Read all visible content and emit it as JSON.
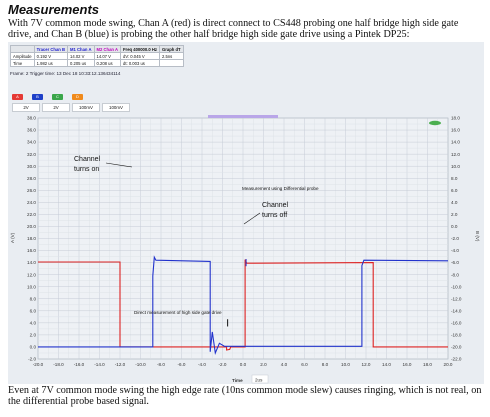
{
  "heading": "Measurements",
  "intro": "With 7V common mode swing, Chan A (red) is direct connect to CS448 probing one half bridge high side gate drive, and Chan B (blue) is probing the other half bridge high side gate drive using a Pintek DP25:",
  "conclusion": "Even at 7V common mode swing the high edge rate (10ns common mode slew) causes ringing, which is not real, on the differential probe based signal.",
  "table": {
    "headers": [
      "",
      "Tracer Chan B",
      "M1 Chan A",
      "M2 Chan A",
      "Freq 400000.0 Hz",
      "Graph dT"
    ],
    "rows": [
      [
        "Amplitude",
        "0.192 V",
        "14.02 V",
        "14.07 V",
        "dV: 0.045 V",
        "2.5ns"
      ],
      [
        "Time",
        "1.982 us",
        "0.205 us",
        "0.208 us",
        "dt: 0.003 us",
        ""
      ]
    ]
  },
  "frame_text": "Frame: 2   Trigger time: 13 Dec 18 10:33:12.136434114",
  "toolbar": {
    "buttons": [
      {
        "label": "A",
        "color": "#e53935"
      },
      {
        "label": "B",
        "color": "#1e40c8"
      },
      {
        "label": "C",
        "color": "#3aa64a"
      },
      {
        "label": "D",
        "color": "#f08a1c"
      }
    ],
    "selectors": [
      "2V",
      "2V",
      "100mV",
      "100mV"
    ]
  },
  "legend_pill": "#4caf50",
  "annotations": {
    "channel_on_1": "Channel",
    "channel_on_2": "turns on",
    "diff_probe": "Measurement using Differential probe",
    "channel_off_1": "Channel",
    "channel_off_2": "turns off",
    "direct": "Direct measurement of high side gate drive"
  },
  "x_axis_label": "Time",
  "x_units": "2us",
  "left_axis_label": "A (V)",
  "right_axis_label": "B (V)",
  "colors": {
    "chan_a": "#dd2222",
    "chan_b": "#2233cc",
    "grid_major": "#c5ccd6",
    "grid_minor": "#dde2e8"
  },
  "chart_data": {
    "type": "line",
    "x_ticks": [
      "-20.0",
      "-18.0",
      "-16.0",
      "-14.0",
      "-12.0",
      "-10.0",
      "-8.0",
      "-6.0",
      "-4.0",
      "-2.0",
      "0.0",
      "2.0",
      "4.0",
      "6.0",
      "8.0",
      "10.0",
      "12.0",
      "14.0",
      "16.0",
      "18.0",
      "20.0"
    ],
    "left_ticks": [
      "38.0",
      "36.0",
      "34.0",
      "32.0",
      "30.0",
      "28.0",
      "26.0",
      "24.0",
      "22.0",
      "20.0",
      "18.0",
      "16.0",
      "14.0",
      "12.0",
      "10.0",
      "8.0",
      "6.0",
      "4.0",
      "2.0",
      "0.0",
      "-2.0"
    ],
    "right_ticks": [
      "18.0",
      "16.0",
      "14.0",
      "12.0",
      "10.0",
      "8.0",
      "6.0",
      "4.0",
      "2.0",
      "0.0",
      "-2.0",
      "-4.0",
      "-6.0",
      "-8.0",
      "-10.0",
      "-12.0",
      "-14.0",
      "-16.0",
      "-18.0",
      "-20.0",
      "-22.0"
    ],
    "xlim": [
      -20,
      20
    ],
    "ylim_left": [
      -2,
      38
    ],
    "ylim_right": [
      -22,
      18
    ],
    "series": [
      {
        "key": "chan_a",
        "points": [
          [
            -20,
            14.1
          ],
          [
            -12,
            14.1
          ],
          [
            -12,
            0
          ],
          [
            -1.6,
            0
          ],
          [
            -1.6,
            -0.5
          ],
          [
            -1.3,
            -0.4
          ],
          [
            -1.2,
            0
          ],
          [
            0.2,
            0
          ],
          [
            0.2,
            14.5
          ],
          [
            0.35,
            13.9
          ],
          [
            12.7,
            14
          ],
          [
            12.7,
            0
          ],
          [
            20,
            0
          ]
        ]
      },
      {
        "key": "chan_b",
        "points": [
          [
            -20,
            0
          ],
          [
            -8.8,
            0
          ],
          [
            -8.8,
            11.8
          ],
          [
            -8.65,
            14.9
          ],
          [
            -8.5,
            14.4
          ],
          [
            -3.2,
            14.2
          ],
          [
            -3.2,
            -0.8
          ],
          [
            -3.0,
            2.5
          ],
          [
            -2.7,
            -1
          ],
          [
            -2.3,
            0.6
          ],
          [
            -1.8,
            0.1
          ],
          [
            11.6,
            0.1
          ],
          [
            11.6,
            13.5
          ],
          [
            11.8,
            14.4
          ],
          [
            20,
            14.3
          ]
        ]
      }
    ]
  }
}
